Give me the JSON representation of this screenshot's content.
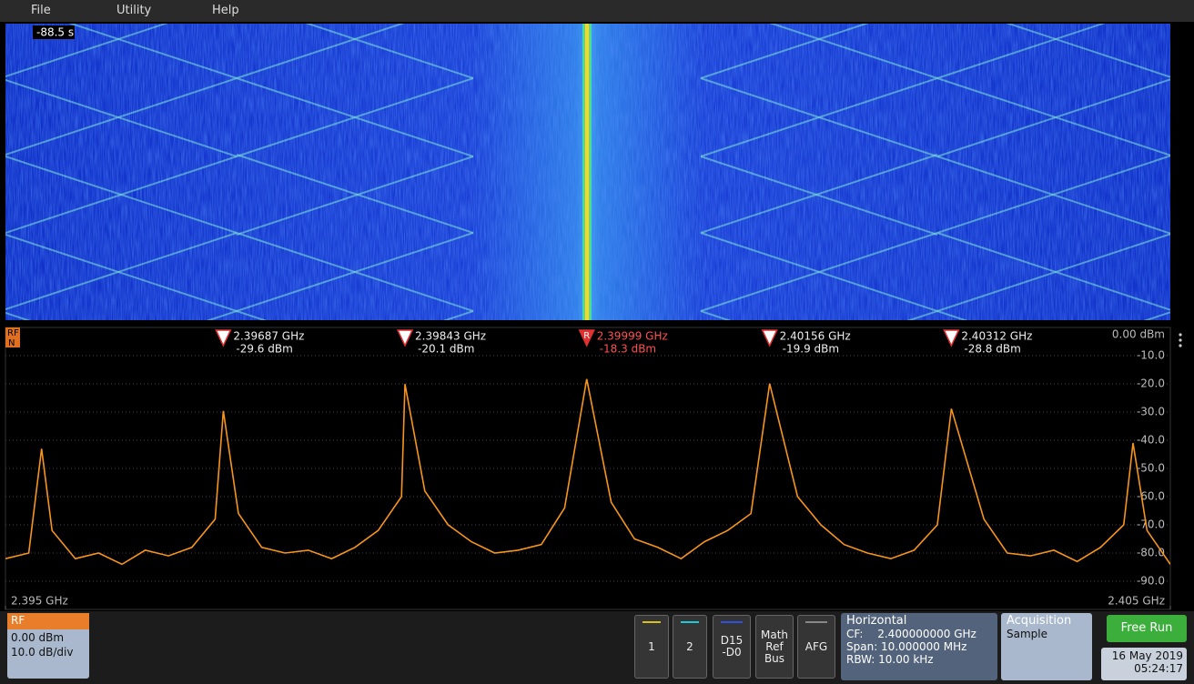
{
  "ui": {
    "menu": [
      "File",
      "Utility",
      "Help"
    ],
    "waterfall": {
      "time_label": "-88.5 s"
    },
    "trace_badge": [
      "RF",
      "N"
    ],
    "rf_panel": {
      "title": "RF",
      "lines": [
        "0.00 dBm",
        "10.0 dB/div"
      ]
    },
    "channels": [
      [
        "1"
      ],
      [
        "2"
      ],
      [
        "D15",
        "-D0"
      ],
      [
        "Math",
        "Ref",
        "Bus"
      ],
      [
        "AFG"
      ]
    ],
    "horizontal": {
      "title": "Horizontal",
      "cf_key": "CF:",
      "cf_value": "2.400000000 GHz",
      "span": "Span: 10.000000 MHz",
      "rbw": "RBW: 10.00 kHz"
    },
    "acquisition": {
      "title": "Acquisition",
      "mode": "Sample"
    },
    "run_button": "Free Run",
    "date": "16 May 2019",
    "time": "05:24:17"
  },
  "chart_data": {
    "type": "line",
    "color": "#f7941d",
    "grid": true,
    "xlim": [
      2.395,
      2.405
    ],
    "ylim": [
      -100,
      0
    ],
    "xticks": [
      {
        "value": 2.395,
        "label": "2.395 GHz"
      },
      {
        "value": 2.405,
        "label": "2.405 GHz"
      }
    ],
    "yticks": [
      {
        "value": 0,
        "label": "0.00 dBm"
      },
      {
        "value": -10,
        "label": "-10.0"
      },
      {
        "value": -20,
        "label": "-20.0"
      },
      {
        "value": -30,
        "label": "-30.0"
      },
      {
        "value": -40,
        "label": "-40.0"
      },
      {
        "value": -50,
        "label": "-50.0"
      },
      {
        "value": -60,
        "label": "-60.0"
      },
      {
        "value": -70,
        "label": "-70.0"
      },
      {
        "value": -80,
        "label": "-80.0"
      },
      {
        "value": -90,
        "label": "-90.0"
      }
    ],
    "x": [
      2.395,
      2.3952,
      2.39531,
      2.3954,
      2.3956,
      2.3958,
      2.396,
      2.3962,
      2.3964,
      2.3966,
      2.3968,
      2.39687,
      2.397,
      2.3972,
      2.3974,
      2.3976,
      2.3978,
      2.398,
      2.3982,
      2.3984,
      2.39843,
      2.3986,
      2.3988,
      2.399,
      2.3992,
      2.3994,
      2.3996,
      2.3998,
      2.39999,
      2.4002,
      2.4004,
      2.4006,
      2.4008,
      2.401,
      2.4012,
      2.4014,
      2.40156,
      2.4018,
      2.402,
      2.4022,
      2.4024,
      2.4026,
      2.4028,
      2.403,
      2.40312,
      2.4034,
      2.4036,
      2.4038,
      2.404,
      2.4042,
      2.4044,
      2.4046,
      2.40468,
      2.4048,
      2.405
    ],
    "values": [
      -82,
      -80,
      -43,
      -72,
      -82,
      -80,
      -84,
      -79,
      -81,
      -78,
      -68,
      -29.6,
      -66,
      -78,
      -80,
      -79,
      -82,
      -78,
      -72,
      -60,
      -20.1,
      -58,
      -70,
      -76,
      -80,
      -79,
      -77,
      -64,
      -18.3,
      -62,
      -75,
      -78,
      -82,
      -76,
      -72,
      -66,
      -19.9,
      -60,
      -70,
      -77,
      -80,
      -82,
      -79,
      -70,
      -28.8,
      -68,
      -80,
      -81,
      -79,
      -83,
      -78,
      -70,
      -41,
      -72,
      -84
    ],
    "markers": [
      {
        "x": 2.39687,
        "label": "2.39687 GHz",
        "level_label": "-29.6 dBm"
      },
      {
        "x": 2.39843,
        "label": "2.39843 GHz",
        "level_label": "-20.1 dBm"
      },
      {
        "x": 2.39999,
        "label": "2.39999 GHz",
        "level_label": "-18.3 dBm",
        "letter": "R"
      },
      {
        "x": 2.40156,
        "label": "2.40156 GHz",
        "level_label": "-19.9 dBm"
      },
      {
        "x": 2.40312,
        "label": "2.40312 GHz",
        "level_label": "-28.8 dBm"
      }
    ]
  }
}
